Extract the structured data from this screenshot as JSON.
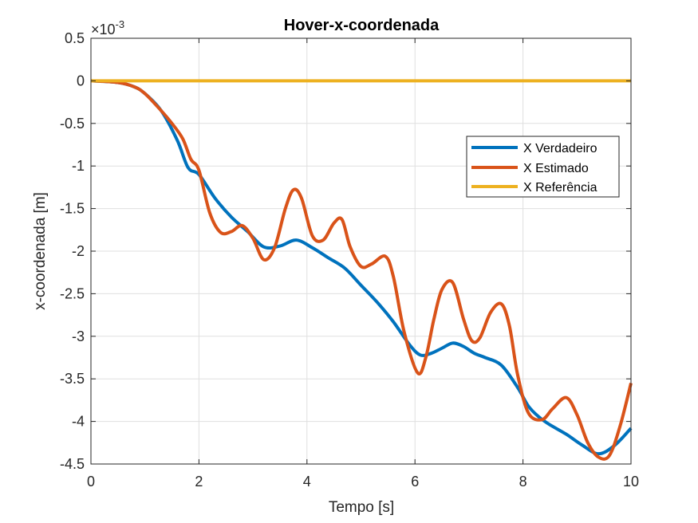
{
  "chart_data": {
    "type": "line",
    "title": "Hover-x-coordenada",
    "xlabel": "Tempo [s]",
    "ylabel": "x-coordenada [m]",
    "y_exponent_prefix": "×10",
    "y_exponent_power": "-3",
    "xlim": [
      0,
      10
    ],
    "ylim": [
      -4.5,
      0.5
    ],
    "xticks": [
      0,
      2,
      4,
      6,
      8,
      10
    ],
    "xtick_labels": [
      "0",
      "2",
      "4",
      "6",
      "8",
      "10"
    ],
    "yticks": [
      0.5,
      0,
      -0.5,
      -1,
      -1.5,
      -2,
      -2.5,
      -3,
      -3.5,
      -4,
      -4.5
    ],
    "ytick_labels": [
      "0.5",
      "0",
      "-0.5",
      "-1",
      "-1.5",
      "-2",
      "-2.5",
      "-3",
      "-3.5",
      "-4",
      "-4.5"
    ],
    "grid": true,
    "legend_position": "right",
    "series": [
      {
        "name": "X Verdadeiro",
        "color": "#0072BD",
        "x": [
          0,
          0.5,
          0.8,
          1.0,
          1.3,
          1.6,
          1.8,
          2.0,
          2.3,
          2.6,
          2.9,
          3.2,
          3.5,
          3.8,
          4.1,
          4.4,
          4.7,
          5.0,
          5.3,
          5.6,
          5.9,
          6.1,
          6.3,
          6.5,
          6.7,
          6.9,
          7.1,
          7.3,
          7.6,
          7.9,
          8.1,
          8.3,
          8.5,
          8.8,
          9.1,
          9.4,
          9.7,
          10.0
        ],
        "y": [
          0,
          -0.02,
          -0.07,
          -0.15,
          -0.35,
          -0.7,
          -1.02,
          -1.1,
          -1.38,
          -1.6,
          -1.77,
          -1.95,
          -1.94,
          -1.87,
          -1.96,
          -2.08,
          -2.2,
          -2.4,
          -2.6,
          -2.83,
          -3.1,
          -3.22,
          -3.2,
          -3.14,
          -3.08,
          -3.12,
          -3.2,
          -3.25,
          -3.34,
          -3.6,
          -3.82,
          -3.95,
          -4.04,
          -4.15,
          -4.28,
          -4.38,
          -4.28,
          -4.08
        ]
      },
      {
        "name": "X Estimado",
        "color": "#D95319",
        "x": [
          0,
          0.5,
          0.8,
          1.0,
          1.3,
          1.5,
          1.7,
          1.85,
          2.0,
          2.2,
          2.4,
          2.6,
          2.8,
          3.0,
          3.2,
          3.4,
          3.6,
          3.75,
          3.9,
          4.1,
          4.3,
          4.5,
          4.65,
          4.8,
          5.0,
          5.2,
          5.45,
          5.6,
          5.8,
          6.05,
          6.2,
          6.35,
          6.5,
          6.7,
          6.9,
          7.05,
          7.2,
          7.4,
          7.6,
          7.75,
          7.9,
          8.1,
          8.35,
          8.55,
          8.8,
          9.0,
          9.2,
          9.4,
          9.6,
          9.8,
          10.0
        ],
        "y": [
          0,
          -0.02,
          -0.07,
          -0.15,
          -0.35,
          -0.5,
          -0.68,
          -0.92,
          -1.05,
          -1.55,
          -1.78,
          -1.77,
          -1.7,
          -1.85,
          -2.1,
          -1.96,
          -1.5,
          -1.28,
          -1.38,
          -1.82,
          -1.87,
          -1.67,
          -1.63,
          -1.95,
          -2.18,
          -2.15,
          -2.06,
          -2.3,
          -2.95,
          -3.43,
          -3.25,
          -2.8,
          -2.45,
          -2.37,
          -2.8,
          -3.05,
          -3.02,
          -2.72,
          -2.62,
          -2.88,
          -3.45,
          -3.9,
          -3.98,
          -3.85,
          -3.72,
          -3.92,
          -4.25,
          -4.42,
          -4.4,
          -4.05,
          -3.55
        ]
      },
      {
        "name": "X Referência",
        "color": "#EDB120",
        "x": [
          0,
          10
        ],
        "y": [
          0,
          0
        ]
      }
    ]
  }
}
